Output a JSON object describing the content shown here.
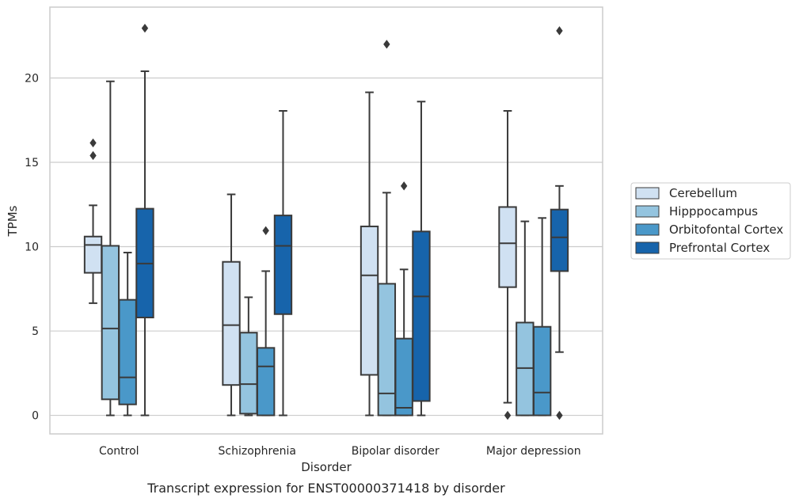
{
  "chart_data": {
    "type": "box",
    "xlabel": "Disorder",
    "ylabel": "TPMs",
    "caption": "Transcript expression for ENST00000371418 by disorder",
    "ylim": [
      -1.1,
      24.2
    ],
    "yticks": [
      0,
      5,
      10,
      15,
      20
    ],
    "grid": "horizontal",
    "legend_position": "right",
    "categories": [
      "Control",
      "Schizophrenia",
      "Bipolar disorder",
      "Major depression"
    ],
    "series": [
      {
        "name": "Cerebellum",
        "color": "#d0e1f2",
        "boxes": [
          {
            "whislo": 6.65,
            "q1": 8.45,
            "med": 10.1,
            "q3": 10.6,
            "whishi": 12.45,
            "fliers": [
              15.4,
              16.15
            ]
          },
          {
            "whislo": 0.0,
            "q1": 1.8,
            "med": 5.35,
            "q3": 9.1,
            "whishi": 13.1,
            "fliers": []
          },
          {
            "whislo": 0.0,
            "q1": 2.4,
            "med": 8.3,
            "q3": 11.2,
            "whishi": 19.15,
            "fliers": []
          },
          {
            "whislo": 0.75,
            "q1": 7.6,
            "med": 10.2,
            "q3": 12.35,
            "whishi": 18.05,
            "fliers": [
              0.0
            ]
          }
        ]
      },
      {
        "name": "Hipppocampus",
        "color": "#94c4df",
        "boxes": [
          {
            "whislo": 0.0,
            "q1": 0.95,
            "med": 5.15,
            "q3": 10.05,
            "whishi": 19.8,
            "fliers": []
          },
          {
            "whislo": 0.0,
            "q1": 0.1,
            "med": 1.85,
            "q3": 4.9,
            "whishi": 7.0,
            "fliers": []
          },
          {
            "whislo": 0.0,
            "q1": 0.0,
            "med": 1.3,
            "q3": 7.8,
            "whishi": 13.2,
            "fliers": [
              22.0
            ]
          },
          {
            "whislo": 0.0,
            "q1": 0.0,
            "med": 2.8,
            "q3": 5.5,
            "whishi": 11.5,
            "fliers": []
          }
        ]
      },
      {
        "name": "Orbitofontal Cortex",
        "color": "#4a98c9",
        "boxes": [
          {
            "whislo": 0.0,
            "q1": 0.65,
            "med": 2.25,
            "q3": 6.85,
            "whishi": 9.65,
            "fliers": []
          },
          {
            "whislo": 0.0,
            "q1": 0.0,
            "med": 2.9,
            "q3": 4.0,
            "whishi": 8.55,
            "fliers": [
              10.95
            ]
          },
          {
            "whislo": 0.0,
            "q1": 0.0,
            "med": 0.45,
            "q3": 4.55,
            "whishi": 8.65,
            "fliers": [
              13.6
            ]
          },
          {
            "whislo": 0.0,
            "q1": 0.0,
            "med": 1.35,
            "q3": 5.25,
            "whishi": 11.7,
            "fliers": []
          }
        ]
      },
      {
        "name": "Prefrontal Cortex",
        "color": "#1764ab",
        "boxes": [
          {
            "whislo": 0.0,
            "q1": 5.8,
            "med": 9.0,
            "q3": 12.25,
            "whishi": 20.4,
            "fliers": [
              22.95
            ]
          },
          {
            "whislo": 0.0,
            "q1": 6.0,
            "med": 10.05,
            "q3": 11.85,
            "whishi": 18.05,
            "fliers": []
          },
          {
            "whislo": 0.0,
            "q1": 0.85,
            "med": 7.05,
            "q3": 10.9,
            "whishi": 18.6,
            "fliers": []
          },
          {
            "whislo": 3.75,
            "q1": 8.55,
            "med": 10.55,
            "q3": 12.2,
            "whishi": 13.6,
            "fliers": [
              0.0,
              22.8
            ]
          }
        ]
      }
    ]
  }
}
